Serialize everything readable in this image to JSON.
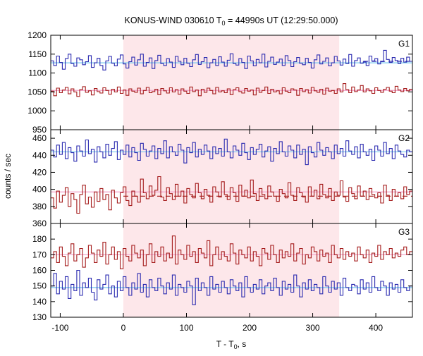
{
  "chart_data": {
    "type": "line",
    "title": "KONUS-WIND 030610 T",
    "title_sub": "0",
    "title_suffix": " = 44990s UT (12:29:50.000)",
    "xlabel": "T - T",
    "xlabel_sub": "0",
    "xlabel_suffix": ", s",
    "ylabel": "counts / sec",
    "xlim": [
      -115,
      458
    ],
    "xticks": [
      -100,
      0,
      100,
      200,
      300,
      400
    ],
    "highlight_interval": [
      0,
      342
    ],
    "highlight_color": "#fde7ea",
    "panels": [
      {
        "name": "G1",
        "ylim": [
          950,
          1200
        ],
        "yticks": [
          950,
          1000,
          1050,
          1100,
          1150,
          1200
        ],
        "series": [
          {
            "color": "#2b2bb0",
            "bg_level": 1127,
            "bg_color": "#74c7ef",
            "dashed_level": 1131,
            "dashed_from": 380,
            "values": [
              1132,
              1120,
              1145,
              1128,
              1110,
              1138,
              1150,
              1125,
              1118,
              1140,
              1135,
              1122,
              1130,
              1146,
              1115,
              1127,
              1139,
              1120,
              1108,
              1132,
              1144,
              1126,
              1119,
              1137,
              1148,
              1124,
              1113,
              1130,
              1142,
              1121,
              1135,
              1150,
              1118,
              1128,
              1140,
              1112,
              1133,
              1147,
              1125,
              1120,
              1138,
              1129,
              1115,
              1144,
              1131,
              1122,
              1139,
              1126,
              1117,
              1135,
              1149,
              1123,
              1130,
              1141,
              1114,
              1127,
              1136,
              1120,
              1143,
              1129,
              1118,
              1134,
              1151,
              1125,
              1121,
              1138,
              1128,
              1112,
              1145,
              1132,
              1119,
              1136,
              1127,
              1150,
              1116,
              1131,
              1142,
              1123,
              1129,
              1137,
              1120,
              1146,
              1133,
              1117,
              1130,
              1141,
              1126,
              1122,
              1139,
              1128,
              1113,
              1135,
              1148,
              1124,
              1131,
              1140,
              1119,
              1127,
              1144,
              1132,
              1121,
              1137,
              1125,
              1149,
              1118,
              1133,
              1140,
              1126,
              1129,
              1120,
              1145,
              1132,
              1138,
              1124,
              1130,
              1160,
              1136,
              1128,
              1141,
              1133,
              1125,
              1139,
              1129,
              1142,
              1131
            ]
          },
          {
            "color": "#a51c1c",
            "bg_level": 1054,
            "bg_color": "#f0a0c8",
            "dashed_level": null,
            "dashed_from": null,
            "values": [
              1052,
              1040,
              1060,
              1048,
              1055,
              1062,
              1045,
              1058,
              1050,
              1038,
              1056,
              1064,
              1049,
              1053,
              1042,
              1059,
              1051,
              1047,
              1061,
              1054,
              1044,
              1057,
              1050,
              1063,
              1046,
              1055,
              1041,
              1058,
              1052,
              1049,
              1060,
              1045,
              1054,
              1062,
              1048,
              1051,
              1057,
              1043,
              1059,
              1053,
              1047,
              1061,
              1050,
              1056,
              1044,
              1058,
              1052,
              1046,
              1063,
              1051,
              1055,
              1040,
              1057,
              1049,
              1060,
              1054,
              1045,
              1062,
              1050,
              1053,
              1048,
              1058,
              1043,
              1056,
              1061,
              1051,
              1047,
              1059,
              1052,
              1055,
              1042,
              1060,
              1049,
              1054,
              1063,
              1046,
              1057,
              1050,
              1053,
              1045,
              1061,
              1052,
              1048,
              1058,
              1055,
              1041,
              1059,
              1051,
              1056,
              1047,
              1062,
              1053,
              1049,
              1057,
              1044,
              1060,
              1052,
              1054,
              1046,
              1058,
              1050,
              1072,
              1056,
              1048,
              1063,
              1051,
              1055,
              1067,
              1050,
              1058,
              1053,
              1046,
              1061,
              1054,
              1049,
              1057,
              1062,
              1052,
              1048,
              1065,
              1055,
              1051,
              1059,
              1053,
              1057
            ]
          }
        ]
      },
      {
        "name": "G2",
        "ylim": [
          360,
          470
        ],
        "yticks": [
          360,
          380,
          400,
          420,
          440,
          460
        ],
        "series": [
          {
            "color": "#2b2bb0",
            "bg_level": 444,
            "bg_color": "#74c7ef",
            "dashed_level": null,
            "dashed_from": null,
            "values": [
              446,
              438,
              452,
              441,
              455,
              436,
              449,
              443,
              433,
              451,
              445,
              439,
              458,
              442,
              447,
              432,
              450,
              444,
              437,
              453,
              440,
              448,
              456,
              435,
              446,
              441,
              452,
              438,
              449,
              443,
              434,
              454,
              447,
              439,
              445,
              451,
              436,
              448,
              442,
              457,
              437,
              450,
              444,
              440,
              453,
              446,
              431,
              449,
              443,
              455,
              438,
              447,
              441,
              452,
              445,
              436,
              450,
              442,
              448,
              439,
              459,
              444,
              437,
              451,
              446,
              440,
              454,
              443,
              435,
              449,
              441,
              447,
              453,
              438,
              445,
              450,
              433,
              448,
              442,
              456,
              444,
              439,
              451,
              446,
              437,
              452,
              441,
              447,
              429,
              450,
              443,
              438,
              455,
              446,
              440,
              449,
              444,
              436,
              452,
              442,
              448,
              439,
              457,
              445,
              441,
              450,
              437,
              453,
              444,
              440,
              447,
              434,
              451,
              446,
              439,
              455,
              442,
              448,
              436,
              452,
              445,
              441,
              438,
              446,
              444
            ]
          },
          {
            "color": "#a51c1c",
            "bg_level": 397,
            "bg_color": "#f0a0c8",
            "dashed_level": 392,
            "dashed_from": 0,
            "values": [
              390,
              378,
              398,
              385,
              393,
              402,
              380,
              395,
              388,
              372,
              394,
              405,
              383,
              391,
              379,
              397,
              386,
              401,
              388,
              394,
              376,
              399,
              390,
              384,
              396,
              403,
              387,
              381,
              398,
              392,
              385,
              412,
              396,
              389,
              404,
              393,
              399,
              415,
              391,
              387,
              402,
              395,
              388,
              406,
              392,
              398,
              384,
              401,
              394,
              390,
              407,
              396,
              389,
              400,
              393,
              385,
              403,
              397,
              391,
              409,
              394,
              388,
              402,
              396,
              386,
              405,
              392,
              399,
              390,
              411,
              395,
              387,
              401,
              394,
              389,
              404,
              397,
              392,
              386,
              400,
              395,
              390,
              408,
              393,
              387,
              402,
              396,
              391,
              385,
              403,
              392,
              399,
              389,
              406,
              394,
              390,
              401,
              387,
              397,
              393,
              410,
              391,
              386,
              402,
              395,
              389,
              404,
              392,
              398,
              388,
              401,
              394,
              390,
              396,
              384,
              405,
              393,
              387,
              400,
              392,
              396,
              389,
              403,
              394,
              398
            ]
          }
        ]
      },
      {
        "name": "G3",
        "ylim": [
          130,
          190
        ],
        "yticks": [
          130,
          140,
          150,
          160,
          170,
          180
        ],
        "series": [
          {
            "color": "#a51c1c",
            "bg_level": 170,
            "bg_color": "#f0a0c8",
            "dashed_level": null,
            "dashed_from": null,
            "values": [
              168,
              172,
              165,
              175,
              169,
              163,
              171,
              177,
              166,
              170,
              174,
              162,
              168,
              176,
              171,
              165,
              173,
              169,
              178,
              164,
              170,
              175,
              167,
              172,
              161,
              174,
              169,
              166,
              176,
              171,
              168,
              173,
              163,
              170,
              177,
              165,
              172,
              169,
              175,
              166,
              171,
              168,
              182,
              164,
              173,
              170,
              167,
              176,
              169,
              172,
              165,
              174,
              171,
              168,
              179,
              163,
              170,
              175,
              167,
              172,
              169,
              166,
              177,
              171,
              164,
              173,
              170,
              168,
              175,
              166,
              172,
              169,
              163,
              174,
              171,
              167,
              176,
              170,
              165,
              173,
              168,
              172,
              169,
              177,
              166,
              171,
              174,
              164,
              170,
              168,
              175,
              172,
              166,
              173,
              169,
              171,
              165,
              176,
              170,
              168,
              174,
              167,
              172,
              169,
              171,
              166,
              175,
              170,
              168,
              173,
              165,
              171,
              169,
              176,
              167,
              172,
              170,
              174,
              168,
              171,
              169,
              173,
              175,
              170,
              172
            ]
          },
          {
            "color": "#2b2bb0",
            "bg_level": 149,
            "bg_color": "#74c7ef",
            "dashed_level": null,
            "dashed_from": null,
            "values": [
              150,
              158,
              145,
              153,
              148,
              156,
              142,
              151,
              147,
              160,
              144,
              152,
              149,
              155,
              146,
              141,
              154,
              148,
              151,
              157,
              145,
              150,
              143,
              153,
              147,
              156,
              149,
              144,
              152,
              148,
              158,
              146,
              151,
              143,
              154,
              149,
              147,
              155,
              150,
              145,
              152,
              148,
              157,
              144,
              151,
              149,
              146,
              153,
              150,
              138,
              155,
              147,
              152,
              149,
              144,
              156,
              148,
              151,
              146,
              153,
              149,
              145,
              154,
              150,
              147,
              152,
              143,
              156,
              149,
              146,
              151,
              148,
              154,
              145,
              150,
              152,
              147,
              155,
              149,
              144,
              153,
              148,
              151,
              146,
              157,
              150,
              143,
              152,
              148,
              154,
              147,
              151,
              149,
              145,
              156,
              150,
              146,
              153,
              148,
              152,
              144,
              155,
              149,
              147,
              151,
              150,
              145,
              154,
              148,
              152,
              146,
              156,
              149,
              147,
              153,
              150,
              144,
              152,
              148,
              151,
              146,
              154,
              149,
              147,
              150
            ]
          }
        ]
      }
    ]
  }
}
